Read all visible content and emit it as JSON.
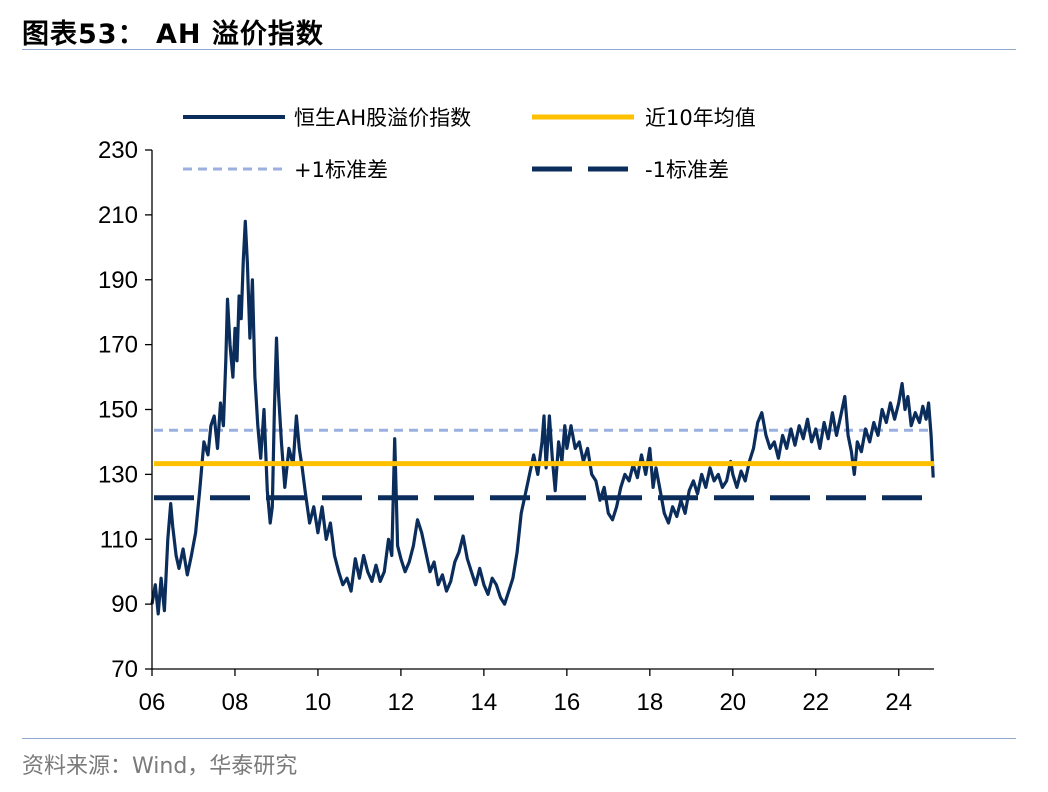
{
  "header": {
    "title": "图表53：  AH 溢价指数"
  },
  "footer": {
    "source": "资料来源：Wind，华泰研究"
  },
  "chart_data": {
    "type": "line",
    "title": "AH 溢价指数",
    "xlabel": "",
    "ylabel": "",
    "xlim": [
      2006.0,
      2024.85
    ],
    "ylim": [
      70,
      230
    ],
    "y_ticks": [
      70,
      90,
      110,
      130,
      150,
      170,
      190,
      210,
      230
    ],
    "x_ticks": [
      {
        "value": 2006,
        "label": "06"
      },
      {
        "value": 2008,
        "label": "08"
      },
      {
        "value": 2010,
        "label": "10"
      },
      {
        "value": 2012,
        "label": "12"
      },
      {
        "value": 2014,
        "label": "14"
      },
      {
        "value": 2016,
        "label": "16"
      },
      {
        "value": 2018,
        "label": "18"
      },
      {
        "value": 2020,
        "label": "20"
      },
      {
        "value": 2022,
        "label": "22"
      },
      {
        "value": 2024,
        "label": "24"
      }
    ],
    "legend_position": "top",
    "series": [
      {
        "name": "恒生AH股溢价指数",
        "style": "solid",
        "color": "#0b2d5b",
        "points": [
          [
            2006.0,
            90
          ],
          [
            2006.08,
            96
          ],
          [
            2006.15,
            87
          ],
          [
            2006.22,
            98
          ],
          [
            2006.3,
            88
          ],
          [
            2006.38,
            110
          ],
          [
            2006.45,
            121
          ],
          [
            2006.5,
            114
          ],
          [
            2006.58,
            105
          ],
          [
            2006.65,
            101
          ],
          [
            2006.75,
            107
          ],
          [
            2006.85,
            99
          ],
          [
            2006.95,
            105
          ],
          [
            2007.05,
            112
          ],
          [
            2007.15,
            125
          ],
          [
            2007.25,
            140
          ],
          [
            2007.35,
            136
          ],
          [
            2007.42,
            145
          ],
          [
            2007.5,
            148
          ],
          [
            2007.58,
            138
          ],
          [
            2007.65,
            152
          ],
          [
            2007.72,
            145
          ],
          [
            2007.78,
            165
          ],
          [
            2007.82,
            184
          ],
          [
            2007.88,
            170
          ],
          [
            2007.95,
            160
          ],
          [
            2008.0,
            175
          ],
          [
            2008.05,
            165
          ],
          [
            2008.1,
            185
          ],
          [
            2008.15,
            178
          ],
          [
            2008.2,
            196
          ],
          [
            2008.25,
            208
          ],
          [
            2008.3,
            195
          ],
          [
            2008.36,
            172
          ],
          [
            2008.42,
            190
          ],
          [
            2008.48,
            160
          ],
          [
            2008.55,
            145
          ],
          [
            2008.62,
            135
          ],
          [
            2008.7,
            150
          ],
          [
            2008.78,
            125
          ],
          [
            2008.85,
            115
          ],
          [
            2008.9,
            120
          ],
          [
            2008.95,
            150
          ],
          [
            2009.0,
            172
          ],
          [
            2009.05,
            155
          ],
          [
            2009.12,
            140
          ],
          [
            2009.2,
            126
          ],
          [
            2009.3,
            138
          ],
          [
            2009.4,
            133
          ],
          [
            2009.48,
            148
          ],
          [
            2009.55,
            138
          ],
          [
            2009.62,
            132
          ],
          [
            2009.7,
            124
          ],
          [
            2009.8,
            115
          ],
          [
            2009.9,
            120
          ],
          [
            2010.0,
            112
          ],
          [
            2010.1,
            120
          ],
          [
            2010.2,
            110
          ],
          [
            2010.3,
            115
          ],
          [
            2010.4,
            105
          ],
          [
            2010.5,
            100
          ],
          [
            2010.6,
            96
          ],
          [
            2010.7,
            98
          ],
          [
            2010.8,
            94
          ],
          [
            2010.9,
            104
          ],
          [
            2011.0,
            98
          ],
          [
            2011.1,
            105
          ],
          [
            2011.2,
            100
          ],
          [
            2011.3,
            97
          ],
          [
            2011.4,
            102
          ],
          [
            2011.5,
            97
          ],
          [
            2011.6,
            100
          ],
          [
            2011.7,
            110
          ],
          [
            2011.78,
            105
          ],
          [
            2011.85,
            141
          ],
          [
            2011.92,
            108
          ],
          [
            2012.0,
            104
          ],
          [
            2012.1,
            100
          ],
          [
            2012.2,
            103
          ],
          [
            2012.3,
            108
          ],
          [
            2012.4,
            116
          ],
          [
            2012.5,
            112
          ],
          [
            2012.6,
            106
          ],
          [
            2012.7,
            100
          ],
          [
            2012.8,
            103
          ],
          [
            2012.9,
            96
          ],
          [
            2013.0,
            99
          ],
          [
            2013.1,
            94
          ],
          [
            2013.2,
            97
          ],
          [
            2013.3,
            103
          ],
          [
            2013.4,
            106
          ],
          [
            2013.5,
            111
          ],
          [
            2013.6,
            104
          ],
          [
            2013.7,
            100
          ],
          [
            2013.8,
            96
          ],
          [
            2013.9,
            101
          ],
          [
            2014.0,
            96
          ],
          [
            2014.1,
            93
          ],
          [
            2014.2,
            98
          ],
          [
            2014.3,
            96
          ],
          [
            2014.4,
            92
          ],
          [
            2014.5,
            90
          ],
          [
            2014.6,
            94
          ],
          [
            2014.7,
            98
          ],
          [
            2014.8,
            106
          ],
          [
            2014.9,
            118
          ],
          [
            2015.0,
            124
          ],
          [
            2015.1,
            130
          ],
          [
            2015.2,
            136
          ],
          [
            2015.3,
            130
          ],
          [
            2015.4,
            140
          ],
          [
            2015.45,
            148
          ],
          [
            2015.5,
            132
          ],
          [
            2015.58,
            148
          ],
          [
            2015.65,
            135
          ],
          [
            2015.72,
            125
          ],
          [
            2015.8,
            140
          ],
          [
            2015.88,
            134
          ],
          [
            2015.95,
            145
          ],
          [
            2016.0,
            138
          ],
          [
            2016.1,
            145
          ],
          [
            2016.2,
            138
          ],
          [
            2016.3,
            140
          ],
          [
            2016.4,
            134
          ],
          [
            2016.5,
            138
          ],
          [
            2016.6,
            130
          ],
          [
            2016.7,
            128
          ],
          [
            2016.8,
            122
          ],
          [
            2016.9,
            126
          ],
          [
            2017.0,
            118
          ],
          [
            2017.1,
            116
          ],
          [
            2017.2,
            120
          ],
          [
            2017.3,
            126
          ],
          [
            2017.4,
            130
          ],
          [
            2017.5,
            128
          ],
          [
            2017.6,
            133
          ],
          [
            2017.7,
            129
          ],
          [
            2017.8,
            136
          ],
          [
            2017.9,
            130
          ],
          [
            2018.0,
            138
          ],
          [
            2018.08,
            126
          ],
          [
            2018.15,
            132
          ],
          [
            2018.25,
            125
          ],
          [
            2018.35,
            118
          ],
          [
            2018.45,
            115
          ],
          [
            2018.55,
            120
          ],
          [
            2018.65,
            117
          ],
          [
            2018.75,
            122
          ],
          [
            2018.85,
            118
          ],
          [
            2018.95,
            125
          ],
          [
            2019.05,
            128
          ],
          [
            2019.15,
            124
          ],
          [
            2019.25,
            130
          ],
          [
            2019.35,
            126
          ],
          [
            2019.45,
            132
          ],
          [
            2019.55,
            128
          ],
          [
            2019.65,
            130
          ],
          [
            2019.75,
            126
          ],
          [
            2019.85,
            128
          ],
          [
            2019.95,
            134
          ],
          [
            2020.0,
            130
          ],
          [
            2020.1,
            126
          ],
          [
            2020.2,
            131
          ],
          [
            2020.3,
            128
          ],
          [
            2020.4,
            134
          ],
          [
            2020.5,
            138
          ],
          [
            2020.6,
            146
          ],
          [
            2020.7,
            149
          ],
          [
            2020.8,
            142
          ],
          [
            2020.9,
            138
          ],
          [
            2021.0,
            140
          ],
          [
            2021.1,
            135
          ],
          [
            2021.2,
            142
          ],
          [
            2021.3,
            138
          ],
          [
            2021.4,
            144
          ],
          [
            2021.5,
            139
          ],
          [
            2021.6,
            145
          ],
          [
            2021.7,
            141
          ],
          [
            2021.8,
            147
          ],
          [
            2021.9,
            140
          ],
          [
            2022.0,
            144
          ],
          [
            2022.1,
            138
          ],
          [
            2022.2,
            146
          ],
          [
            2022.3,
            141
          ],
          [
            2022.4,
            149
          ],
          [
            2022.5,
            142
          ],
          [
            2022.6,
            148
          ],
          [
            2022.7,
            154
          ],
          [
            2022.78,
            142
          ],
          [
            2022.86,
            137
          ],
          [
            2022.93,
            130
          ],
          [
            2023.0,
            140
          ],
          [
            2023.1,
            137
          ],
          [
            2023.2,
            144
          ],
          [
            2023.3,
            140
          ],
          [
            2023.4,
            146
          ],
          [
            2023.5,
            142
          ],
          [
            2023.6,
            150
          ],
          [
            2023.7,
            146
          ],
          [
            2023.8,
            152
          ],
          [
            2023.9,
            147
          ],
          [
            2024.0,
            152
          ],
          [
            2024.08,
            158
          ],
          [
            2024.15,
            150
          ],
          [
            2024.22,
            154
          ],
          [
            2024.3,
            145
          ],
          [
            2024.4,
            149
          ],
          [
            2024.5,
            146
          ],
          [
            2024.58,
            151
          ],
          [
            2024.66,
            147
          ],
          [
            2024.72,
            152
          ],
          [
            2024.78,
            142
          ],
          [
            2024.83,
            129
          ]
        ]
      },
      {
        "name": "近10年均值",
        "style": "solid",
        "color": "#ffc000",
        "value": 133.3
      },
      {
        "name": "+1标准差",
        "style": "dashed",
        "color": "#9bb0de",
        "value": 143.6
      },
      {
        "name": "-1标准差",
        "style": "long-dashed",
        "color": "#0b2d5b",
        "value": 122.8
      }
    ]
  }
}
